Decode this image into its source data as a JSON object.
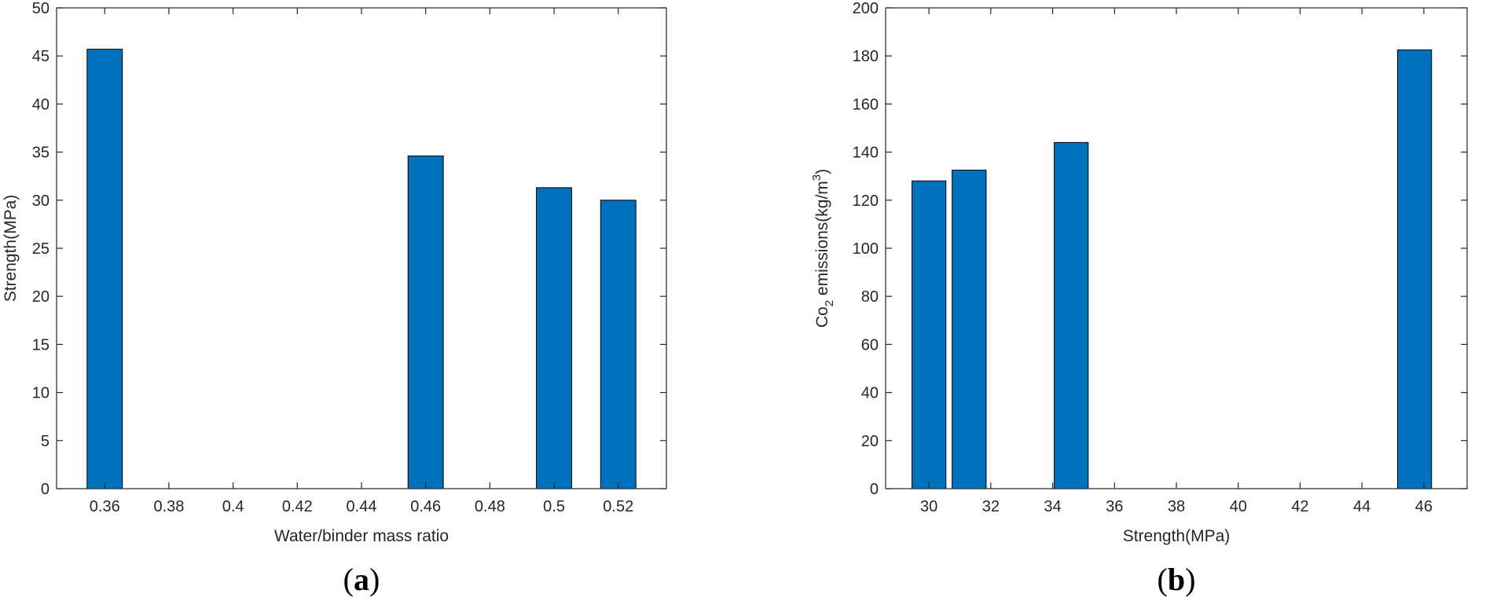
{
  "chart_data": [
    {
      "type": "bar",
      "panel_label": "a",
      "xlabel": "Water/binder mass ratio",
      "ylabel": "Strength(MPa)",
      "x": [
        0.36,
        0.46,
        0.5,
        0.52
      ],
      "values": [
        45.7,
        34.6,
        31.3,
        30.0
      ],
      "xlim": [
        0.345,
        0.535
      ],
      "ylim": [
        0,
        50
      ],
      "xticks": [
        0.36,
        0.38,
        0.4,
        0.42,
        0.44,
        0.46,
        0.48,
        0.5,
        0.52
      ],
      "xtick_labels": [
        "0.36",
        "0.38",
        "0.4",
        "0.42",
        "0.44",
        "0.46",
        "0.48",
        "0.5",
        "0.52"
      ],
      "yticks": [
        0,
        5,
        10,
        15,
        20,
        25,
        30,
        35,
        40,
        45,
        50
      ],
      "ytick_labels": [
        "0",
        "5",
        "10",
        "15",
        "20",
        "25",
        "30",
        "35",
        "40",
        "45",
        "50"
      ],
      "bar_color": "#0072BD",
      "grid": false
    },
    {
      "type": "bar",
      "panel_label": "b",
      "xlabel": "Strength(MPa)",
      "ylabel_main": "Co",
      "ylabel_sub": "2",
      "ylabel_mid": " emissions(kg/m",
      "ylabel_sup": "3",
      "ylabel_end": ")",
      "x": [
        30.0,
        31.3,
        34.6,
        45.7
      ],
      "values": [
        128,
        132.5,
        144,
        182.5
      ],
      "xlim": [
        28.6,
        47.4
      ],
      "ylim": [
        0,
        200
      ],
      "xticks": [
        30,
        32,
        34,
        36,
        38,
        40,
        42,
        44,
        46
      ],
      "xtick_labels": [
        "30",
        "32",
        "34",
        "36",
        "38",
        "40",
        "42",
        "44",
        "46"
      ],
      "yticks": [
        0,
        20,
        40,
        60,
        80,
        100,
        120,
        140,
        160,
        180,
        200
      ],
      "ytick_labels": [
        "0",
        "20",
        "40",
        "60",
        "80",
        "100",
        "120",
        "140",
        "160",
        "180",
        "200"
      ],
      "bar_color": "#0072BD",
      "grid": false
    }
  ]
}
